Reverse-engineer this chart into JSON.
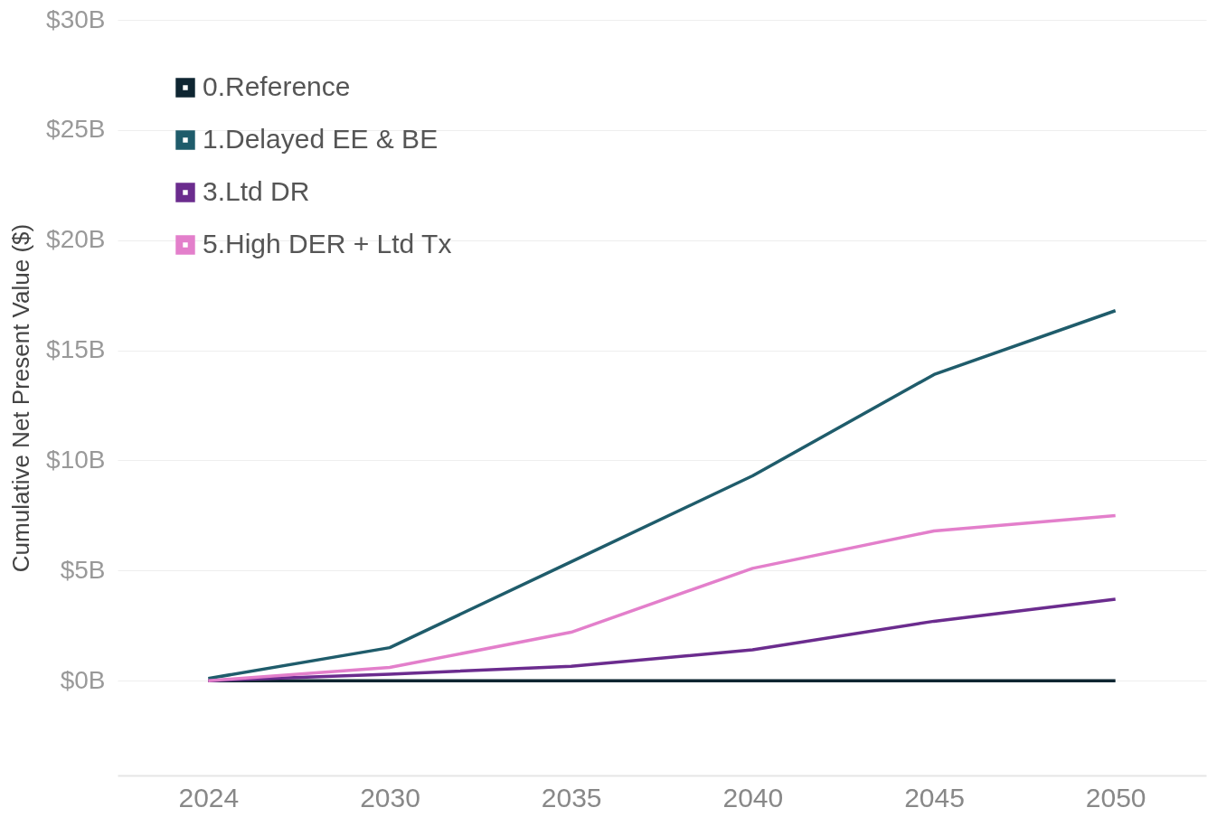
{
  "chart_data": {
    "type": "line",
    "ylabel": "Cumulative Net Present Value ($)",
    "categories": [
      "2024",
      "2030",
      "2035",
      "2040",
      "2045",
      "2050"
    ],
    "series": [
      {
        "name": "0.Reference",
        "color": "#0f2632",
        "values": [
          0,
          0,
          0,
          0,
          0,
          0
        ]
      },
      {
        "name": "1.Delayed EE & BE",
        "color": "#1f5c6b",
        "values": [
          0.1,
          1.5,
          5.4,
          9.3,
          13.9,
          16.8
        ]
      },
      {
        "name": "3.Ltd DR",
        "color": "#6b2c8e",
        "values": [
          0,
          0.3,
          0.65,
          1.4,
          2.7,
          3.7
        ]
      },
      {
        "name": "5.High DER + Ltd Tx",
        "color": "#e37fcb",
        "values": [
          0,
          0.6,
          2.2,
          5.1,
          6.8,
          7.5
        ]
      }
    ],
    "ylim": [
      -4.3,
      30
    ],
    "yticks": [
      {
        "value": 0,
        "label": "$0B"
      },
      {
        "value": 5,
        "label": "$5B"
      },
      {
        "value": 10,
        "label": "$10B"
      },
      {
        "value": 15,
        "label": "$15B"
      },
      {
        "value": 20,
        "label": "$20B"
      },
      {
        "value": 25,
        "label": "$25B"
      },
      {
        "value": 30,
        "label": "$30B"
      }
    ],
    "grid": "y",
    "legend": "top left",
    "marker": "none",
    "line_style": "solid"
  }
}
